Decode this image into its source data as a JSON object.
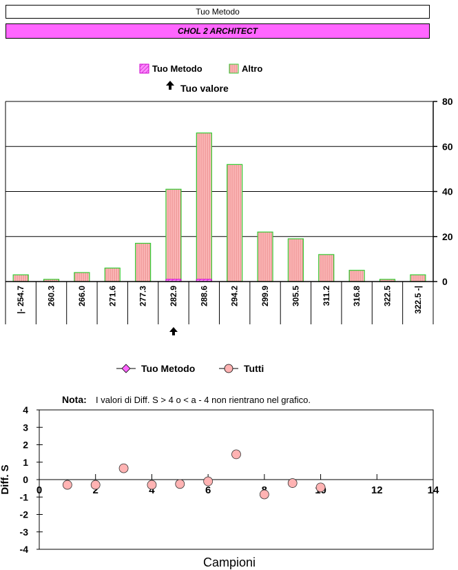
{
  "header": {
    "method_label": "Tuo Metodo",
    "analyte": "CHOL 2  ARCHITECT"
  },
  "histogram": {
    "chart_data": {
      "type": "bar",
      "legend": [
        {
          "name": "Tuo Metodo",
          "color": "#ff66ff",
          "pattern": "diagonal"
        },
        {
          "name": "Altro",
          "color": "#ffb3b3",
          "pattern": "vertical-lines",
          "stroke": "#33cc33"
        }
      ],
      "marker_label": "Tuo valore",
      "categories": [
        "|- 254.7",
        "260.3",
        "266.0",
        "271.6",
        "277.3",
        "282.9",
        "288.6",
        "294.2",
        "299.9",
        "305.5",
        "311.2",
        "316.8",
        "322.5",
        "322.5 -|"
      ],
      "series": [
        {
          "name": "Altro",
          "values": [
            3,
            1,
            4,
            6,
            17,
            41,
            66,
            52,
            22,
            19,
            12,
            5,
            1,
            3
          ]
        }
      ],
      "your_method_values": [
        0,
        0,
        0,
        0,
        0,
        1,
        1,
        0,
        0,
        0,
        0,
        0,
        0,
        0
      ],
      "your_value_category_index": 5,
      "ylim": [
        0,
        80
      ],
      "yticks": [
        "0",
        "20",
        "40",
        "60",
        "80"
      ],
      "grid": true,
      "legend_position": "top"
    }
  },
  "scatter": {
    "legend": [
      {
        "name": "Tuo Metodo",
        "color": "#ff66ff",
        "marker": "diamond"
      },
      {
        "name": "Tutti",
        "color": "#ffb3b3",
        "marker": "circle"
      }
    ],
    "note_label": "Nota:",
    "note_text": "I valori di Diff. S > 4 o < a - 4 non rientrano nel grafico.",
    "chart_data": {
      "type": "scatter",
      "xlabel": "Campioni",
      "ylabel": "Diff. S",
      "xlim": [
        0,
        14
      ],
      "ylim": [
        -4,
        4
      ],
      "xticks": [
        "0",
        "2",
        "4",
        "6",
        "8",
        "10",
        "12",
        "14"
      ],
      "yticks": [
        "4",
        "3",
        "2",
        "1",
        "0",
        "-1",
        "-2",
        "-3",
        "-4"
      ],
      "series": [
        {
          "name": "Tutti",
          "x": [
            1,
            2,
            3,
            4,
            5,
            6,
            7,
            8,
            9,
            10
          ],
          "y": [
            -0.3,
            -0.3,
            0.65,
            -0.3,
            -0.25,
            -0.1,
            1.45,
            -0.85,
            -0.2,
            -0.45
          ]
        }
      ]
    }
  }
}
